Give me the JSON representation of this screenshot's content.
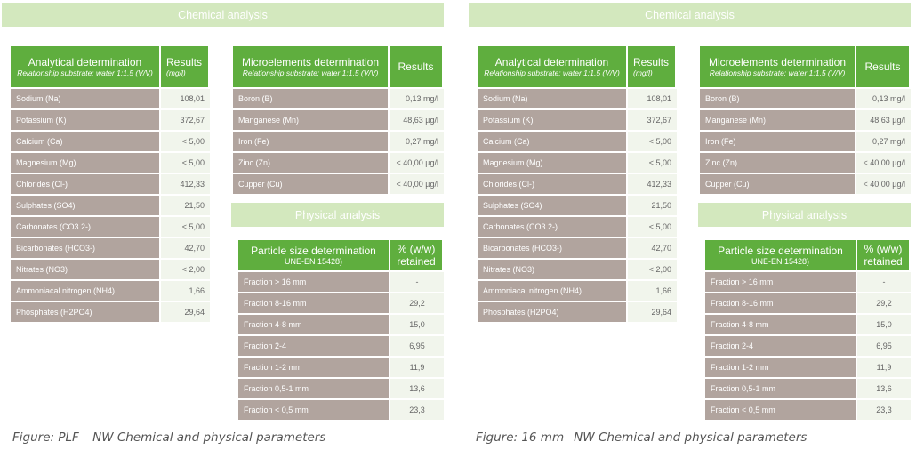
{
  "chemical_banner": "Chemical analysis",
  "physical_banner": "Physical analysis",
  "analytical": {
    "header": "Analytical determination",
    "subheader": "Relationship substrate: water 1:1,5 (V/V)",
    "results_header": "Results",
    "results_unit": "(mg/l)",
    "rows": [
      {
        "name": "Sodium (Na)",
        "value": "108,01"
      },
      {
        "name": "Potassium (K)",
        "value": "372,67"
      },
      {
        "name": "Calcium (Ca)",
        "value": "< 5,00"
      },
      {
        "name": "Magnesium (Mg)",
        "value": "< 5,00"
      },
      {
        "name": "Chlorides (Cl-)",
        "value": "412,33"
      },
      {
        "name": "Sulphates (SO4)",
        "value": "21,50"
      },
      {
        "name": "Carbonates (CO3 2-)",
        "value": "< 5,00"
      },
      {
        "name": "Bicarbonates (HCO3-)",
        "value": "42,70"
      },
      {
        "name": "Nitrates (NO3)",
        "value": "< 2,00"
      },
      {
        "name": "Ammoniacal nitrogen (NH4)",
        "value": "1,66"
      },
      {
        "name": "Phosphates (H2PO4)",
        "value": "29,64"
      }
    ]
  },
  "micro": {
    "header": "Microelements determination",
    "subheader": "Relationship substrate: water 1:1,5 (V/V)",
    "results_header": "Results",
    "rows": [
      {
        "name": "Boron (B)",
        "value": "0,13 mg/l"
      },
      {
        "name": "Manganese (Mn)",
        "value": "48,63 µg/l"
      },
      {
        "name": "Iron (Fe)",
        "value": "0,27 mg/l"
      },
      {
        "name": "Zinc (Zn)",
        "value": "< 40,00  µg/l"
      },
      {
        "name": "Cupper (Cu)",
        "value": "< 40,00  µg/l"
      }
    ]
  },
  "particle": {
    "header": "Particle size determination",
    "subheader": "UNE-EN 15428)",
    "col2_line1": "% (w/w)",
    "col2_line2": "retained",
    "rows": [
      {
        "name": "Fraction > 16 mm",
        "value": "-"
      },
      {
        "name": "Fraction 8-16 mm",
        "value": "29,2"
      },
      {
        "name": "Fraction 4-8 mm",
        "value": "15,0"
      },
      {
        "name": "Fraction 2-4",
        "value": "6,95"
      },
      {
        "name": "Fraction 1-2 mm",
        "value": "11,9"
      },
      {
        "name": "Fraction 0,5-1 mm",
        "value": "13,6"
      },
      {
        "name": "Fraction < 0,5 mm",
        "value": "23,3"
      }
    ]
  },
  "captions": [
    "Figure: PLF – NW Chemical and physical parameters",
    "Figure: 16 mm– NW Chemical and physical parameters"
  ]
}
